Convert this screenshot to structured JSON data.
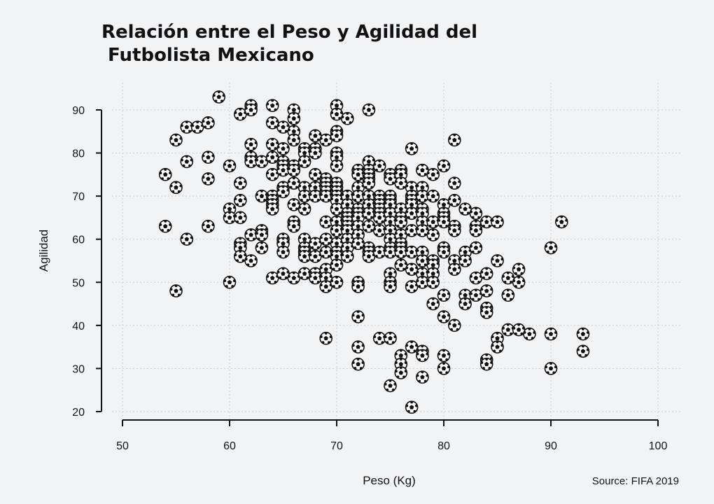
{
  "chart_data": {
    "type": "scatter",
    "title_lines": [
      "Relación entre el Peso y Agilidad del",
      " Futbolista Mexicano"
    ],
    "xlabel": "Peso (Kg)",
    "ylabel": "Agilidad",
    "source": "Source: FIFA 2019",
    "xlim": [
      50,
      100
    ],
    "ylim": [
      20,
      90
    ],
    "xticks": [
      50,
      60,
      70,
      80,
      90,
      100
    ],
    "yticks": [
      20,
      30,
      40,
      50,
      60,
      70,
      80,
      90
    ],
    "grid": true,
    "marker": "soccer-ball-icon",
    "points": [
      [
        54,
        75
      ],
      [
        54,
        63
      ],
      [
        55,
        83
      ],
      [
        55,
        72
      ],
      [
        55,
        48
      ],
      [
        56,
        86
      ],
      [
        56,
        78
      ],
      [
        56,
        60
      ],
      [
        57,
        86
      ],
      [
        58,
        87
      ],
      [
        58,
        79
      ],
      [
        58,
        74
      ],
      [
        58,
        63
      ],
      [
        59,
        93
      ],
      [
        60,
        77
      ],
      [
        60,
        67
      ],
      [
        60,
        65
      ],
      [
        60,
        50
      ],
      [
        61,
        89
      ],
      [
        61,
        73
      ],
      [
        61,
        69
      ],
      [
        61,
        65
      ],
      [
        61,
        59
      ],
      [
        61,
        58
      ],
      [
        61,
        56
      ],
      [
        62,
        91
      ],
      [
        62,
        90
      ],
      [
        62,
        82
      ],
      [
        62,
        79
      ],
      [
        62,
        78
      ],
      [
        62,
        61
      ],
      [
        62,
        55
      ],
      [
        63,
        78
      ],
      [
        63,
        70
      ],
      [
        63,
        62
      ],
      [
        63,
        61
      ],
      [
        63,
        58
      ],
      [
        64,
        91
      ],
      [
        64,
        87
      ],
      [
        64,
        82
      ],
      [
        64,
        79
      ],
      [
        64,
        75
      ],
      [
        64,
        70
      ],
      [
        64,
        69
      ],
      [
        64,
        68
      ],
      [
        64,
        67
      ],
      [
        64,
        51
      ],
      [
        65,
        86
      ],
      [
        65,
        81
      ],
      [
        65,
        78
      ],
      [
        65,
        77
      ],
      [
        65,
        76
      ],
      [
        65,
        72
      ],
      [
        65,
        71
      ],
      [
        65,
        60
      ],
      [
        65,
        59
      ],
      [
        65,
        57
      ],
      [
        65,
        52
      ],
      [
        66,
        90
      ],
      [
        66,
        88
      ],
      [
        66,
        85
      ],
      [
        66,
        83
      ],
      [
        66,
        77
      ],
      [
        66,
        76
      ],
      [
        66,
        73
      ],
      [
        66,
        68
      ],
      [
        66,
        64
      ],
      [
        66,
        63
      ],
      [
        66,
        51
      ],
      [
        67,
        81
      ],
      [
        67,
        80
      ],
      [
        67,
        78
      ],
      [
        67,
        72
      ],
      [
        67,
        70
      ],
      [
        67,
        67
      ],
      [
        67,
        60
      ],
      [
        67,
        58
      ],
      [
        67,
        57
      ],
      [
        67,
        56
      ],
      [
        67,
        52
      ],
      [
        68,
        84
      ],
      [
        68,
        81
      ],
      [
        68,
        80
      ],
      [
        68,
        75
      ],
      [
        68,
        72
      ],
      [
        68,
        70
      ],
      [
        68,
        59
      ],
      [
        68,
        56
      ],
      [
        68,
        52
      ],
      [
        68,
        51
      ],
      [
        69,
        83
      ],
      [
        69,
        74
      ],
      [
        69,
        73
      ],
      [
        69,
        72
      ],
      [
        69,
        71
      ],
      [
        69,
        70
      ],
      [
        69,
        64
      ],
      [
        69,
        60
      ],
      [
        69,
        57
      ],
      [
        69,
        53
      ],
      [
        69,
        51
      ],
      [
        69,
        49
      ],
      [
        69,
        37
      ],
      [
        70,
        91
      ],
      [
        70,
        89
      ],
      [
        70,
        85
      ],
      [
        70,
        84
      ],
      [
        70,
        80
      ],
      [
        70,
        79
      ],
      [
        70,
        77
      ],
      [
        70,
        73
      ],
      [
        70,
        72
      ],
      [
        70,
        71
      ],
      [
        70,
        70
      ],
      [
        70,
        69
      ],
      [
        70,
        67
      ],
      [
        70,
        64
      ],
      [
        70,
        62
      ],
      [
        70,
        59
      ],
      [
        70,
        57
      ],
      [
        70,
        56
      ],
      [
        70,
        54
      ],
      [
        70,
        50
      ],
      [
        71,
        88
      ],
      [
        71,
        70
      ],
      [
        71,
        68
      ],
      [
        71,
        66
      ],
      [
        71,
        65
      ],
      [
        71,
        64
      ],
      [
        71,
        63
      ],
      [
        71,
        62
      ],
      [
        71,
        60
      ],
      [
        71,
        58
      ],
      [
        71,
        56
      ],
      [
        72,
        76
      ],
      [
        72,
        75
      ],
      [
        72,
        72
      ],
      [
        72,
        70
      ],
      [
        72,
        67
      ],
      [
        72,
        66
      ],
      [
        72,
        65
      ],
      [
        72,
        63
      ],
      [
        72,
        61
      ],
      [
        72,
        59
      ],
      [
        72,
        50
      ],
      [
        72,
        49
      ],
      [
        72,
        42
      ],
      [
        72,
        35
      ],
      [
        72,
        31
      ],
      [
        73,
        90
      ],
      [
        73,
        78
      ],
      [
        73,
        76
      ],
      [
        73,
        75
      ],
      [
        73,
        74
      ],
      [
        73,
        73
      ],
      [
        73,
        70
      ],
      [
        73,
        68
      ],
      [
        73,
        66
      ],
      [
        73,
        63
      ],
      [
        73,
        58
      ],
      [
        73,
        57
      ],
      [
        73,
        56
      ],
      [
        74,
        77
      ],
      [
        74,
        70
      ],
      [
        74,
        69
      ],
      [
        74,
        68
      ],
      [
        74,
        67
      ],
      [
        74,
        66
      ],
      [
        74,
        65
      ],
      [
        74,
        62
      ],
      [
        74,
        57
      ],
      [
        74,
        37
      ],
      [
        75,
        75
      ],
      [
        75,
        74
      ],
      [
        75,
        70
      ],
      [
        75,
        69
      ],
      [
        75,
        68
      ],
      [
        75,
        66
      ],
      [
        75,
        64
      ],
      [
        75,
        62
      ],
      [
        75,
        60
      ],
      [
        75,
        58
      ],
      [
        75,
        57
      ],
      [
        75,
        52
      ],
      [
        75,
        50
      ],
      [
        75,
        49
      ],
      [
        75,
        37
      ],
      [
        75,
        26
      ],
      [
        76,
        76
      ],
      [
        76,
        75
      ],
      [
        76,
        73
      ],
      [
        76,
        67
      ],
      [
        76,
        65
      ],
      [
        76,
        64
      ],
      [
        76,
        61
      ],
      [
        76,
        59
      ],
      [
        76,
        58
      ],
      [
        76,
        57
      ],
      [
        76,
        54
      ],
      [
        76,
        33
      ],
      [
        76,
        31
      ],
      [
        76,
        29
      ],
      [
        77,
        81
      ],
      [
        77,
        72
      ],
      [
        77,
        70
      ],
      [
        77,
        69
      ],
      [
        77,
        68
      ],
      [
        77,
        66
      ],
      [
        77,
        62
      ],
      [
        77,
        57
      ],
      [
        77,
        53
      ],
      [
        77,
        49
      ],
      [
        77,
        35
      ],
      [
        77,
        21
      ],
      [
        78,
        76
      ],
      [
        78,
        72
      ],
      [
        78,
        70
      ],
      [
        78,
        67
      ],
      [
        78,
        66
      ],
      [
        78,
        64
      ],
      [
        78,
        62
      ],
      [
        78,
        57
      ],
      [
        78,
        55
      ],
      [
        78,
        52
      ],
      [
        78,
        50
      ],
      [
        78,
        34
      ],
      [
        78,
        33
      ],
      [
        78,
        28
      ],
      [
        79,
        75
      ],
      [
        79,
        70
      ],
      [
        79,
        64
      ],
      [
        79,
        61
      ],
      [
        79,
        55
      ],
      [
        79,
        54
      ],
      [
        79,
        52
      ],
      [
        79,
        50
      ],
      [
        79,
        45
      ],
      [
        80,
        77
      ],
      [
        80,
        68
      ],
      [
        80,
        66
      ],
      [
        80,
        65
      ],
      [
        80,
        64
      ],
      [
        80,
        58
      ],
      [
        80,
        57
      ],
      [
        80,
        47
      ],
      [
        80,
        42
      ],
      [
        80,
        33
      ],
      [
        80,
        30
      ],
      [
        81,
        83
      ],
      [
        81,
        73
      ],
      [
        81,
        69
      ],
      [
        81,
        63
      ],
      [
        81,
        62
      ],
      [
        81,
        55
      ],
      [
        81,
        53
      ],
      [
        81,
        40
      ],
      [
        82,
        67
      ],
      [
        82,
        57
      ],
      [
        82,
        55
      ],
      [
        82,
        47
      ],
      [
        82,
        45
      ],
      [
        83,
        66
      ],
      [
        83,
        63
      ],
      [
        83,
        62
      ],
      [
        83,
        58
      ],
      [
        83,
        51
      ],
      [
        83,
        47
      ],
      [
        84,
        64
      ],
      [
        84,
        52
      ],
      [
        84,
        48
      ],
      [
        84,
        44
      ],
      [
        84,
        43
      ],
      [
        84,
        32
      ],
      [
        84,
        31
      ],
      [
        85,
        64
      ],
      [
        85,
        55
      ],
      [
        85,
        37
      ],
      [
        85,
        35
      ],
      [
        86,
        51
      ],
      [
        86,
        47
      ],
      [
        86,
        39
      ],
      [
        87,
        53
      ],
      [
        87,
        50
      ],
      [
        87,
        39
      ],
      [
        88,
        38
      ],
      [
        90,
        58
      ],
      [
        90,
        38
      ],
      [
        90,
        30
      ],
      [
        91,
        64
      ],
      [
        93,
        38
      ],
      [
        93,
        34
      ]
    ]
  }
}
